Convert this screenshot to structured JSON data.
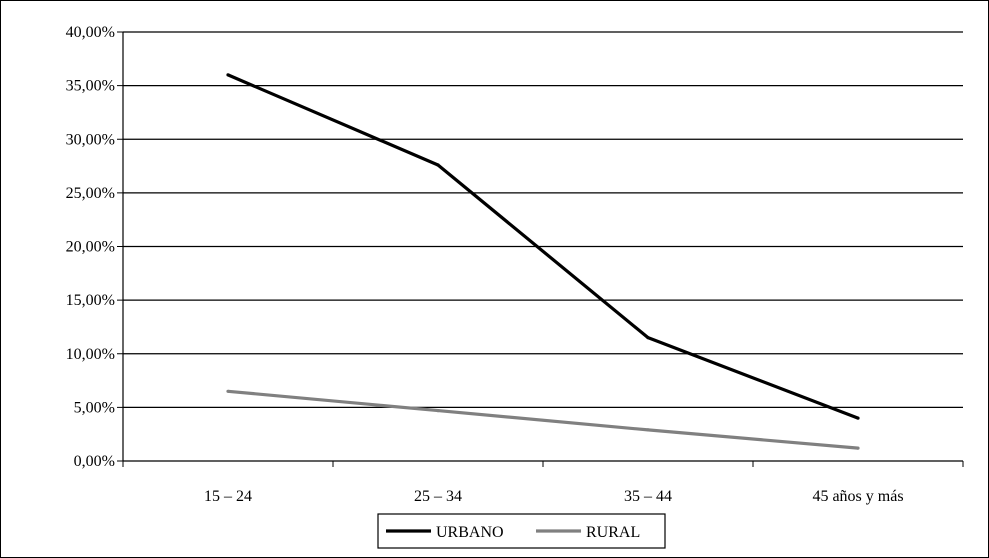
{
  "chart_data": {
    "type": "line",
    "categories": [
      "15 – 24",
      "25 – 34",
      "35 – 44",
      "45 años y más"
    ],
    "series": [
      {
        "name": "URBANO",
        "values": [
          36.0,
          27.6,
          11.5,
          4.0
        ],
        "color": "#000000"
      },
      {
        "name": "RURAL",
        "values": [
          6.5,
          4.7,
          2.9,
          1.2
        ],
        "color": "#808080"
      }
    ],
    "ylim": [
      0,
      40
    ],
    "yticks": [
      0,
      5,
      10,
      15,
      20,
      25,
      30,
      35,
      40
    ],
    "ytick_labels": [
      "0,00%",
      "5,00%",
      "10,00%",
      "15,00%",
      "20,00%",
      "25,00%",
      "30,00%",
      "35,00%",
      "40,00%"
    ],
    "grid": true,
    "legend": "bottom"
  }
}
